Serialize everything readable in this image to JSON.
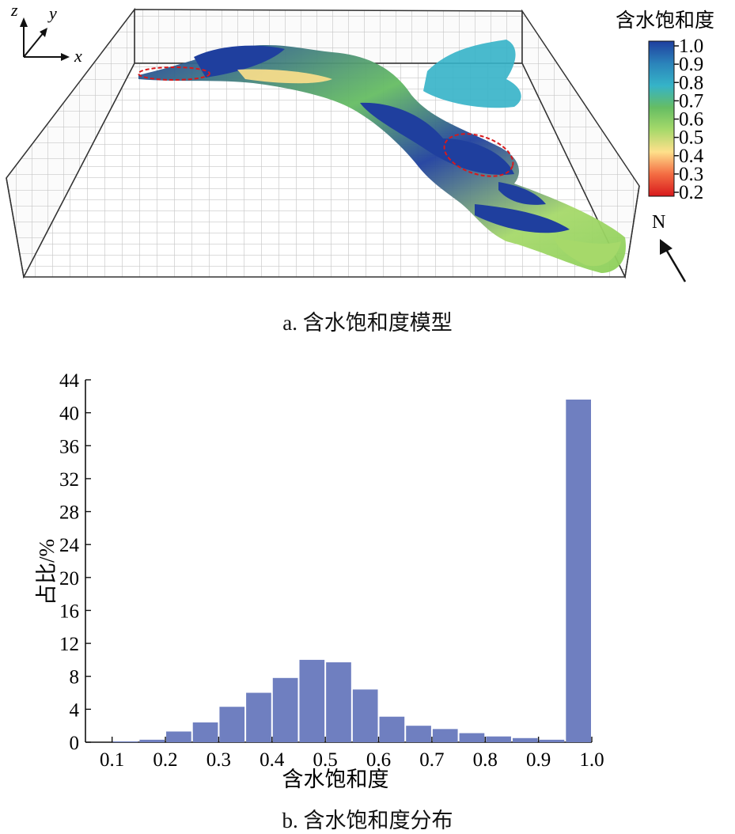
{
  "panel_a": {
    "caption": "a. 含水饱和度模型",
    "axes": {
      "z": "z",
      "y": "y",
      "x": "x"
    },
    "north_label": "N",
    "colorbar": {
      "title": "含水饱和度",
      "ticks": [
        "1.0",
        "0.9",
        "0.8",
        "0.7",
        "0.6",
        "0.5",
        "0.4",
        "0.3",
        "0.2"
      ],
      "colors": [
        "#d7191c",
        "#f46d43",
        "#fee08b",
        "#a6d96a",
        "#66bd63",
        "#35b3c8",
        "#2b83ba",
        "#1f3f9e"
      ]
    }
  },
  "panel_b": {
    "caption": "b. 含水饱和度分布"
  },
  "chart_data": {
    "type": "bar",
    "title": "",
    "xlabel": "含水饱和度",
    "ylabel": "占比/%",
    "xlim": [
      0.05,
      1.0
    ],
    "ylim": [
      0,
      44
    ],
    "xticks": [
      0.1,
      0.2,
      0.3,
      0.4,
      0.5,
      0.6,
      0.7,
      0.8,
      0.9,
      1.0
    ],
    "xtick_labels": [
      "0.1",
      "0.2",
      "0.3",
      "0.4",
      "0.5",
      "0.6",
      "0.7",
      "0.8",
      "0.9",
      "1.0"
    ],
    "yticks": [
      0,
      4,
      8,
      12,
      16,
      20,
      24,
      28,
      32,
      36,
      40,
      44
    ],
    "ytick_labels": [
      "0",
      "4",
      "8",
      "12",
      "16",
      "20",
      "24",
      "28",
      "32",
      "36",
      "40",
      "44"
    ],
    "bar_color": "#6f7fc0",
    "bar_width": 0.05,
    "x": [
      0.125,
      0.175,
      0.225,
      0.275,
      0.325,
      0.375,
      0.425,
      0.475,
      0.525,
      0.575,
      0.625,
      0.675,
      0.725,
      0.775,
      0.825,
      0.875,
      0.925,
      0.975
    ],
    "values": [
      0.1,
      0.3,
      1.3,
      2.4,
      4.3,
      6.0,
      7.8,
      10.0,
      9.7,
      6.4,
      3.1,
      2.0,
      1.6,
      1.1,
      0.7,
      0.5,
      0.3,
      41.6
    ]
  }
}
